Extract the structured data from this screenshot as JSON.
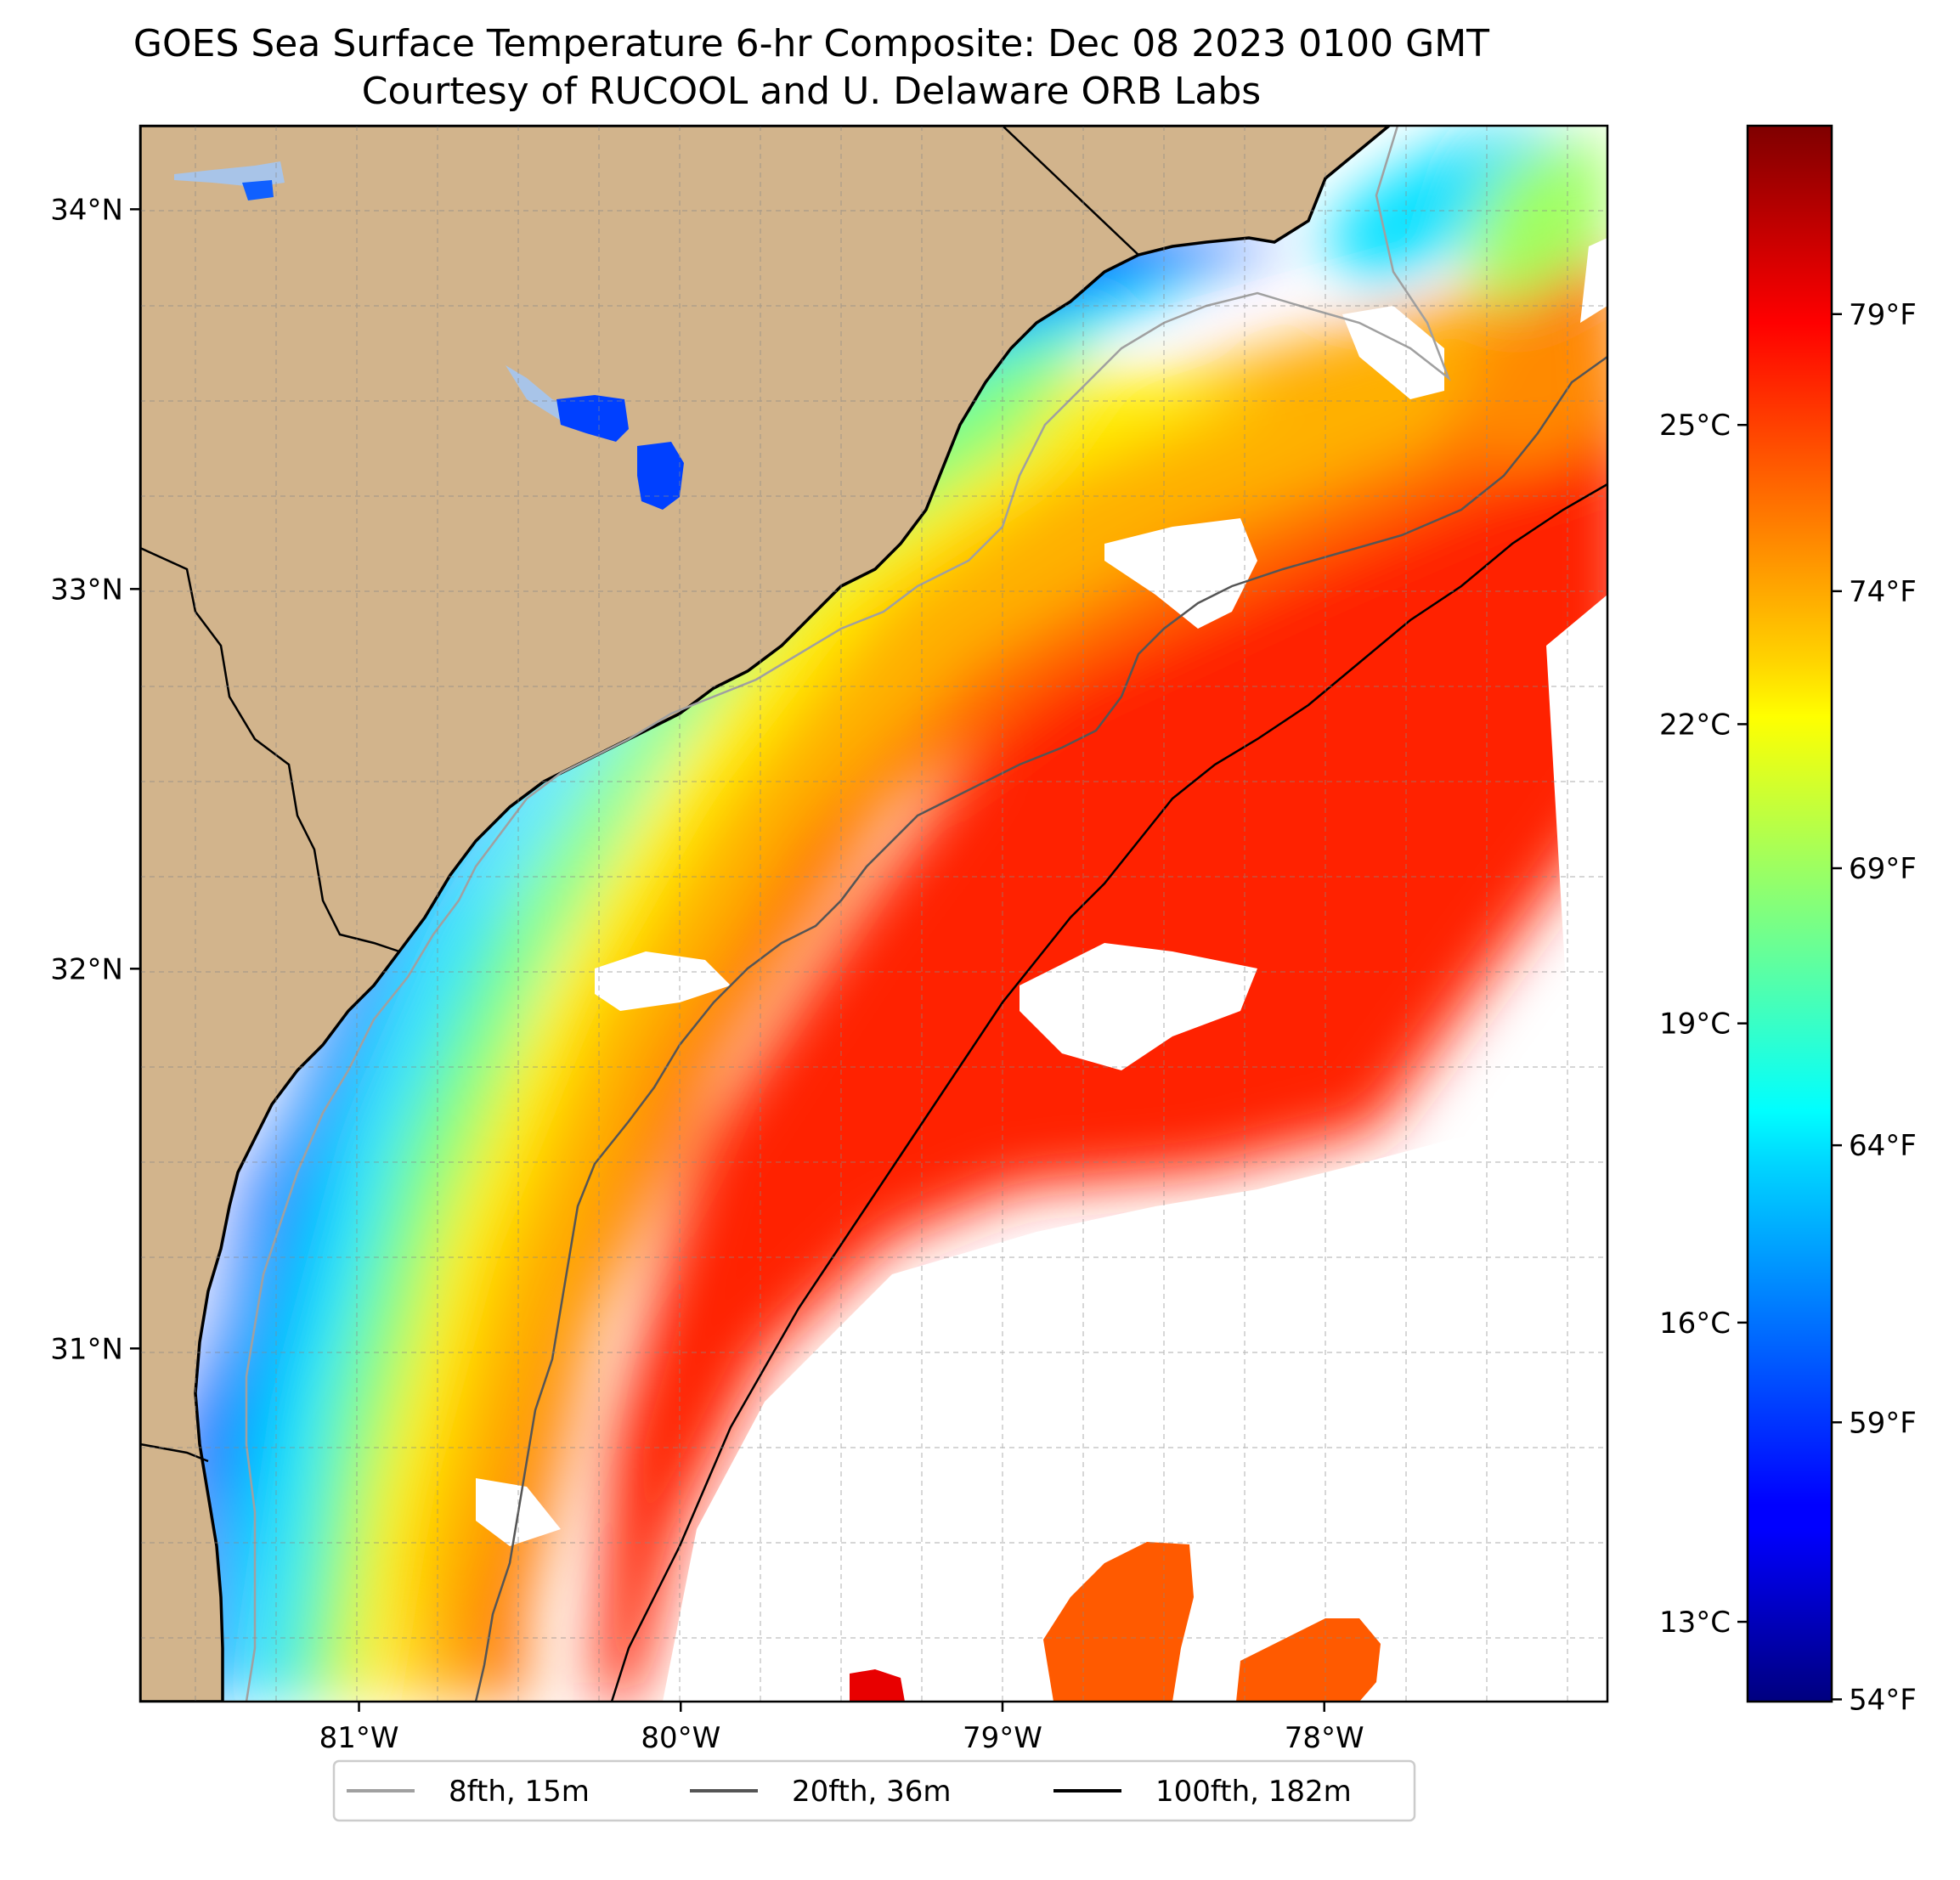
{
  "title": {
    "line1": "GOES Sea Surface Temperature 6-hr Composite: Dec 08 2023 0100 GMT",
    "line2": "Courtesy of RUCOOL and U. Delaware ORB Labs"
  },
  "map": {
    "lon_range": [
      -81.68,
      -77.12
    ],
    "lat_range": [
      30.07,
      34.22
    ],
    "lat_ticks": [
      {
        "value": 34,
        "label": "34°N"
      },
      {
        "value": 33,
        "label": "33°N"
      },
      {
        "value": 32,
        "label": "32°N"
      },
      {
        "value": 31,
        "label": "31°N"
      }
    ],
    "lon_ticks": [
      {
        "value": -81,
        "label": "81°W"
      },
      {
        "value": -80,
        "label": "80°W"
      },
      {
        "value": -79,
        "label": "79°W"
      },
      {
        "value": -78,
        "label": "78°W"
      }
    ],
    "grid": true,
    "land_color": "#d2b48c",
    "no_data_color": "#ffffff"
  },
  "colorbar": {
    "colormap": "jet",
    "range_celsius": [
      12.2,
      28.0
    ],
    "celsius_ticks": [
      {
        "value": 13,
        "label": "13°C"
      },
      {
        "value": 16,
        "label": "16°C"
      },
      {
        "value": 19,
        "label": "19°C"
      },
      {
        "value": 22,
        "label": "22°C"
      },
      {
        "value": 25,
        "label": "25°C"
      }
    ],
    "fahrenheit_ticks": [
      {
        "value": 54,
        "label": "54°F"
      },
      {
        "value": 59,
        "label": "59°F"
      },
      {
        "value": 64,
        "label": "64°F"
      },
      {
        "value": 69,
        "label": "69°F"
      },
      {
        "value": 74,
        "label": "74°F"
      },
      {
        "value": 79,
        "label": "79°F"
      }
    ]
  },
  "legend": {
    "placement": "bottom-center",
    "items": [
      {
        "label": "8fth, 15m",
        "color": "#a0a0a0"
      },
      {
        "label": "20fth, 36m",
        "color": "#555555"
      },
      {
        "label": "100fth, 182m",
        "color": "#000000"
      }
    ]
  }
}
